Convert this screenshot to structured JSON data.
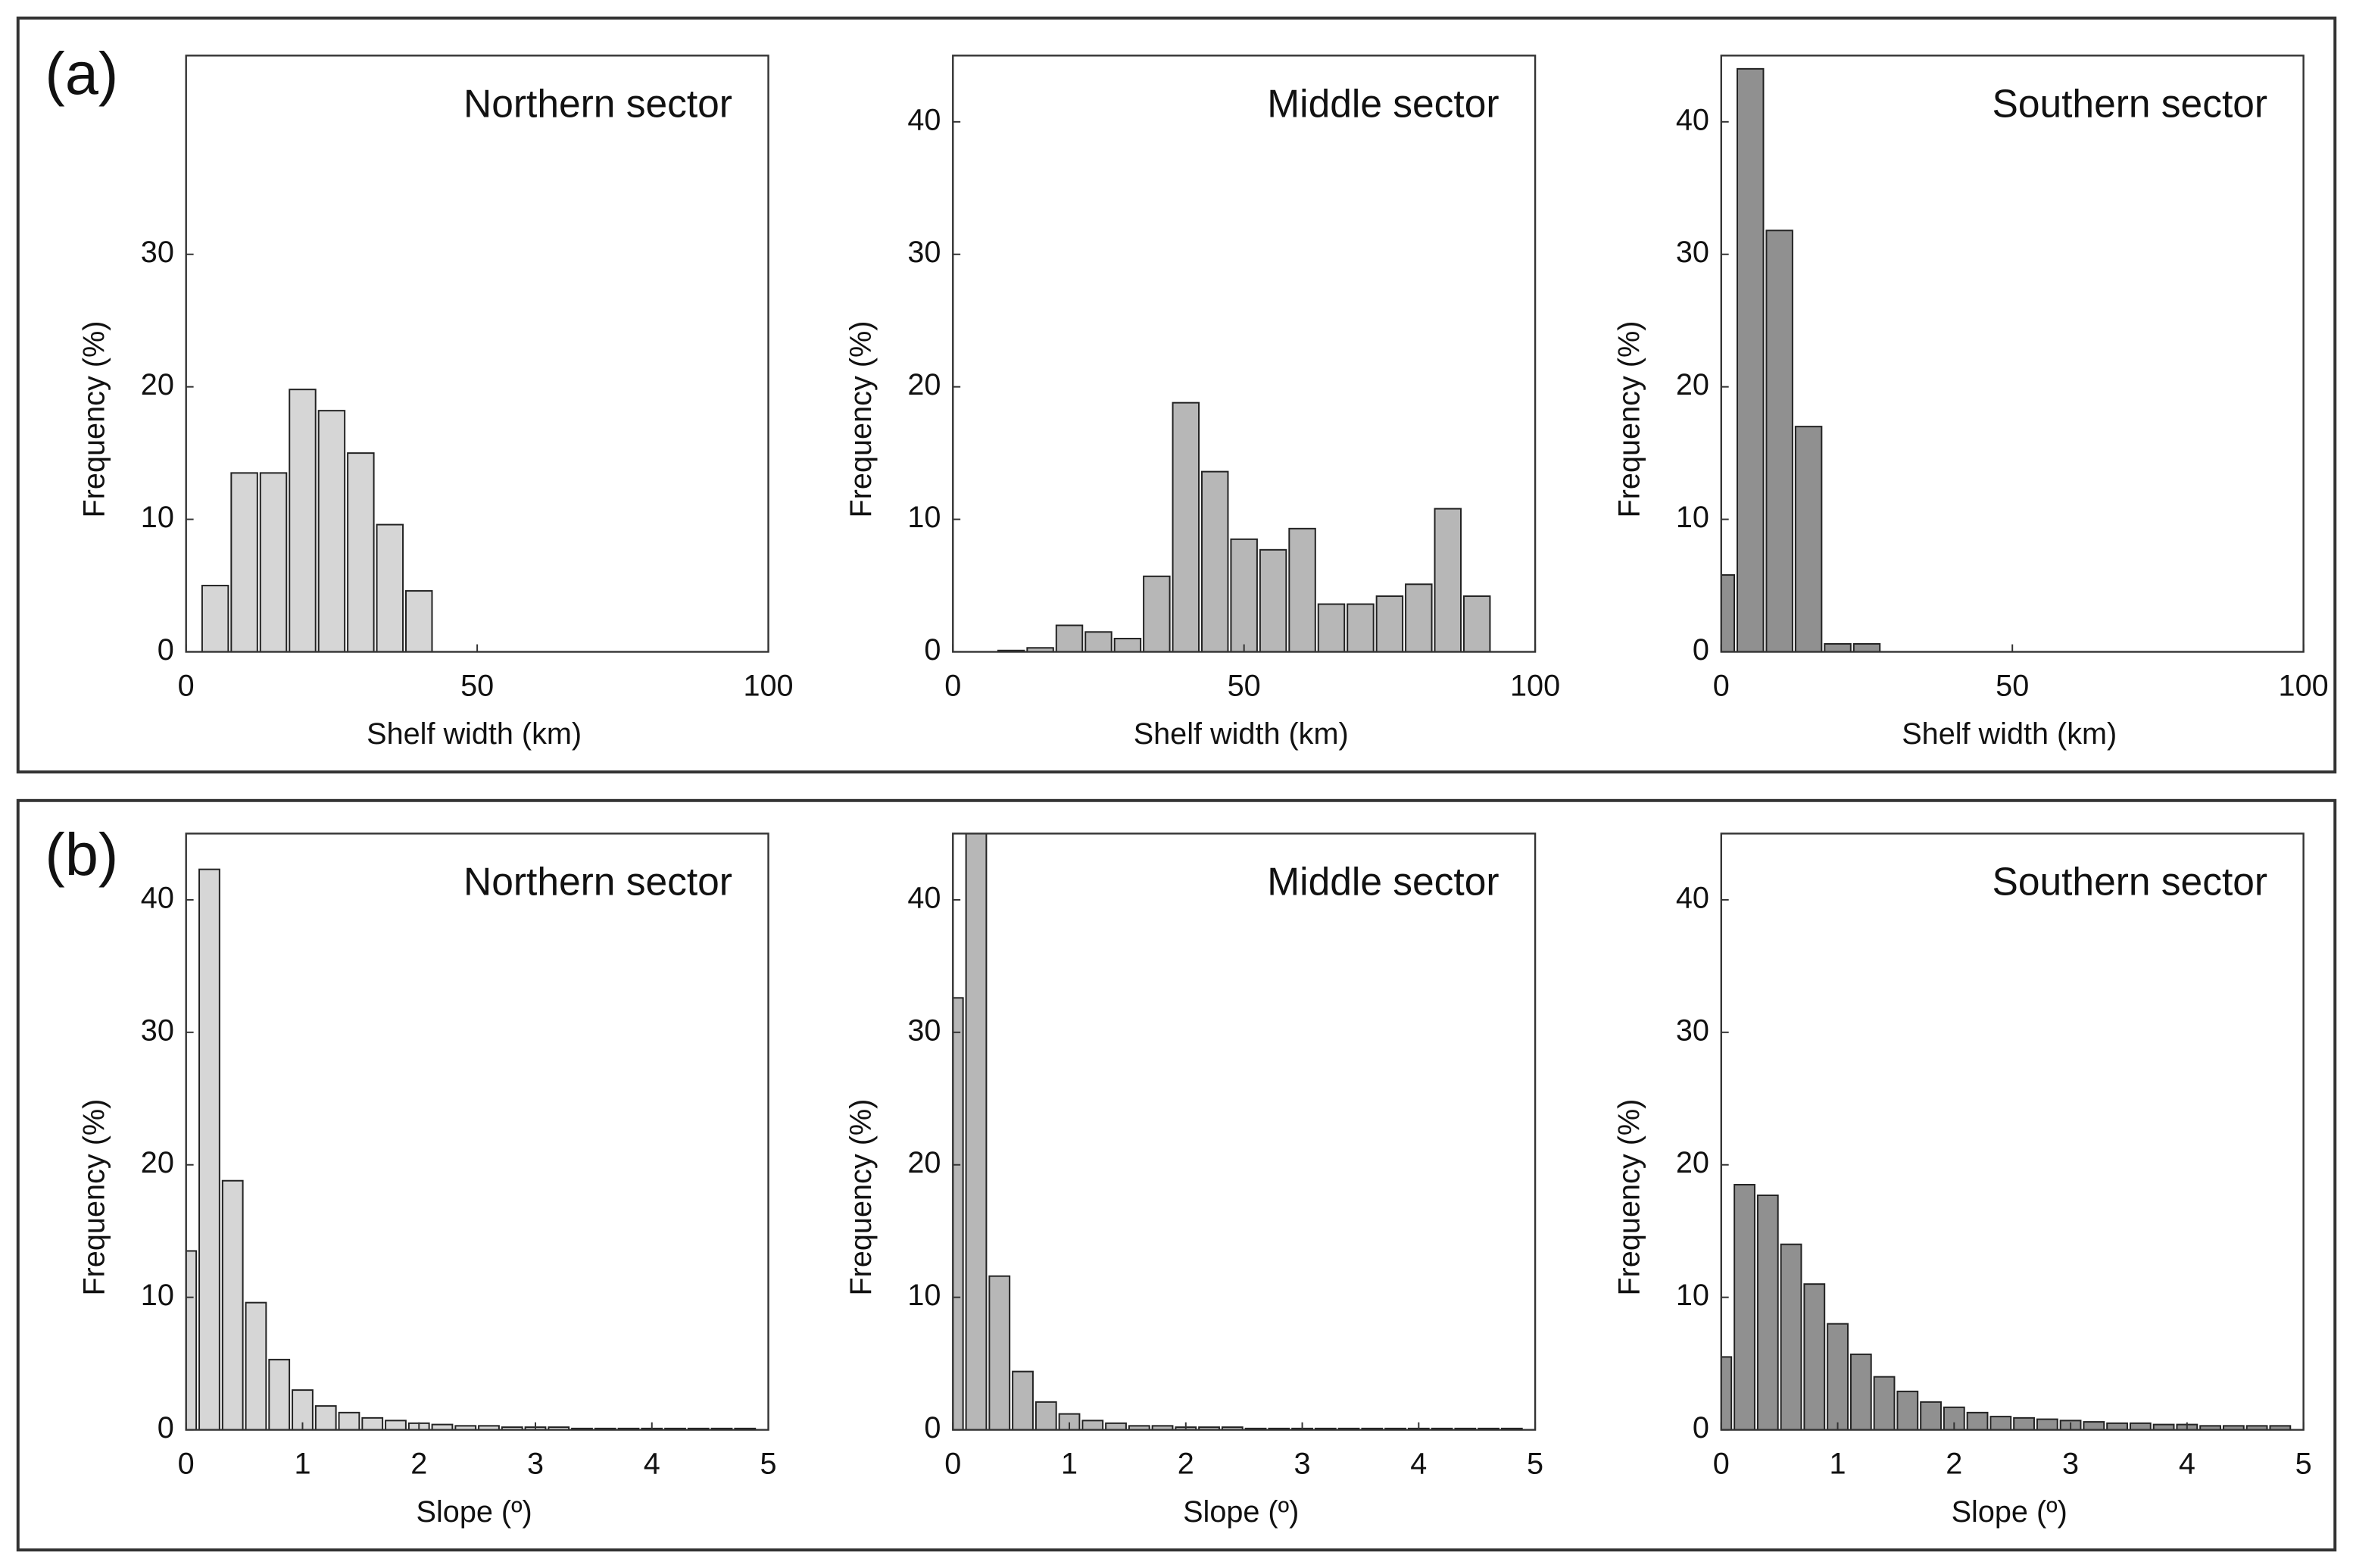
{
  "panel_labels": [
    "(a)",
    "(b)"
  ],
  "chart_data": [
    {
      "type": "histogram",
      "title": "Northern sector",
      "xlabel": "Shelf width (km)",
      "ylabel": "Frequency (%)",
      "color": "#d6d6d6",
      "bins": [
        2.5,
        7.5,
        12.5,
        17.5,
        22.5,
        27.5,
        32.5,
        37.5,
        42.5
      ],
      "values": [
        5,
        13.5,
        13.5,
        19.8,
        18.2,
        15,
        9.6,
        4.6
      ],
      "xlim": [
        0,
        100
      ],
      "xticks": [
        0,
        50,
        100
      ],
      "ylim": [
        0,
        45
      ],
      "yticks": [
        0,
        10,
        20,
        30
      ]
    },
    {
      "type": "histogram",
      "title": "Middle sector",
      "xlabel": "Shelf width (km)",
      "ylabel": "Frequency (%)",
      "color": "#b7b7b7",
      "bins": [
        7.5,
        12.5,
        17.5,
        22.5,
        27.5,
        32.5,
        37.5,
        42.5,
        47.5,
        52.5,
        57.5,
        62.5,
        67.5,
        72.5,
        77.5,
        82.5,
        87.5,
        92.5
      ],
      "values": [
        0.1,
        0.3,
        2,
        1.5,
        1,
        5.7,
        18.8,
        13.6,
        8.5,
        7.7,
        9.3,
        3.6,
        3.6,
        4.2,
        5.1,
        10.8,
        4.2
      ],
      "xlim": [
        0,
        100
      ],
      "xticks": [
        0,
        50,
        100
      ],
      "ylim": [
        0,
        45
      ],
      "yticks": [
        0,
        10,
        20,
        30,
        40
      ]
    },
    {
      "type": "histogram",
      "title": "Southern sector",
      "xlabel": "Shelf width (km)",
      "ylabel": "Frequency (%)",
      "color": "#909090",
      "bins": [
        -2.5,
        2.5,
        7.5,
        12.5,
        17.5,
        22.5,
        27.5
      ],
      "values": [
        5.8,
        44,
        31.8,
        17,
        0.6,
        0.6
      ],
      "xlim": [
        0,
        100
      ],
      "xticks": [
        0,
        50,
        100
      ],
      "ylim": [
        0,
        45
      ],
      "yticks": [
        0,
        10,
        20,
        30,
        40
      ]
    },
    {
      "type": "histogram",
      "title": "Northern sector",
      "xlabel": "Slope (º)",
      "ylabel": "Frequency (%)",
      "color": "#d6d6d6",
      "bins": [
        -0.1,
        0.1,
        0.3,
        0.5,
        0.7,
        0.9,
        1.1,
        1.3,
        1.5,
        1.7,
        1.9,
        2.1,
        2.3,
        2.5,
        2.7,
        2.9,
        3.1,
        3.3,
        3.5,
        3.7,
        3.9,
        4.1,
        4.3,
        4.5,
        4.7,
        4.9
      ],
      "values": [
        13.5,
        42.3,
        18.8,
        9.6,
        5.3,
        3,
        1.8,
        1.3,
        0.9,
        0.7,
        0.5,
        0.4,
        0.3,
        0.3,
        0.2,
        0.2,
        0.2,
        0.1,
        0.1,
        0.1,
        0.1,
        0.1,
        0.1,
        0.1,
        0.1
      ],
      "xlim": [
        0,
        5
      ],
      "xticks": [
        0,
        1,
        2,
        3,
        4,
        5
      ],
      "ylim": [
        0,
        45
      ],
      "yticks": [
        0,
        10,
        20,
        30,
        40
      ]
    },
    {
      "type": "histogram",
      "title": "Middle sector",
      "xlabel": "Slope (º)",
      "ylabel": "Frequency (%)",
      "color": "#b7b7b7",
      "bins": [
        -0.1,
        0.1,
        0.3,
        0.5,
        0.7,
        0.9,
        1.1,
        1.3,
        1.5,
        1.7,
        1.9,
        2.1,
        2.3,
        2.5,
        2.7,
        2.9,
        3.1,
        3.3,
        3.5,
        3.7,
        3.9,
        4.1,
        4.3,
        4.5,
        4.7,
        4.9
      ],
      "values": [
        32.6,
        45.3,
        11.6,
        4.4,
        2.1,
        1.2,
        0.7,
        0.5,
        0.3,
        0.3,
        0.2,
        0.2,
        0.2,
        0.1,
        0.1,
        0.1,
        0.1,
        0.1,
        0.1,
        0.1,
        0.1,
        0.1,
        0.1,
        0.1,
        0.1
      ],
      "xlim": [
        0,
        5
      ],
      "xticks": [
        0,
        1,
        2,
        3,
        4,
        5
      ],
      "ylim": [
        0,
        45
      ],
      "yticks": [
        0,
        10,
        20,
        30,
        40
      ]
    },
    {
      "type": "histogram",
      "title": "Southern sector",
      "xlabel": "Slope (º)",
      "ylabel": "Frequency (%)",
      "color": "#909090",
      "bins": [
        -0.1,
        0.1,
        0.3,
        0.5,
        0.7,
        0.9,
        1.1,
        1.3,
        1.5,
        1.7,
        1.9,
        2.1,
        2.3,
        2.5,
        2.7,
        2.9,
        3.1,
        3.3,
        3.5,
        3.7,
        3.9,
        4.1,
        4.3,
        4.5,
        4.7,
        4.9
      ],
      "values": [
        5.5,
        18.5,
        17.7,
        14,
        11,
        8,
        5.7,
        4,
        2.9,
        2.1,
        1.7,
        1.3,
        1,
        0.9,
        0.8,
        0.7,
        0.6,
        0.5,
        0.5,
        0.4,
        0.4,
        0.3,
        0.3,
        0.3,
        0.3
      ],
      "xlim": [
        0,
        5
      ],
      "xticks": [
        0,
        1,
        2,
        3,
        4,
        5
      ],
      "ylim": [
        0,
        45
      ],
      "yticks": [
        0,
        10,
        20,
        30,
        40
      ]
    }
  ]
}
